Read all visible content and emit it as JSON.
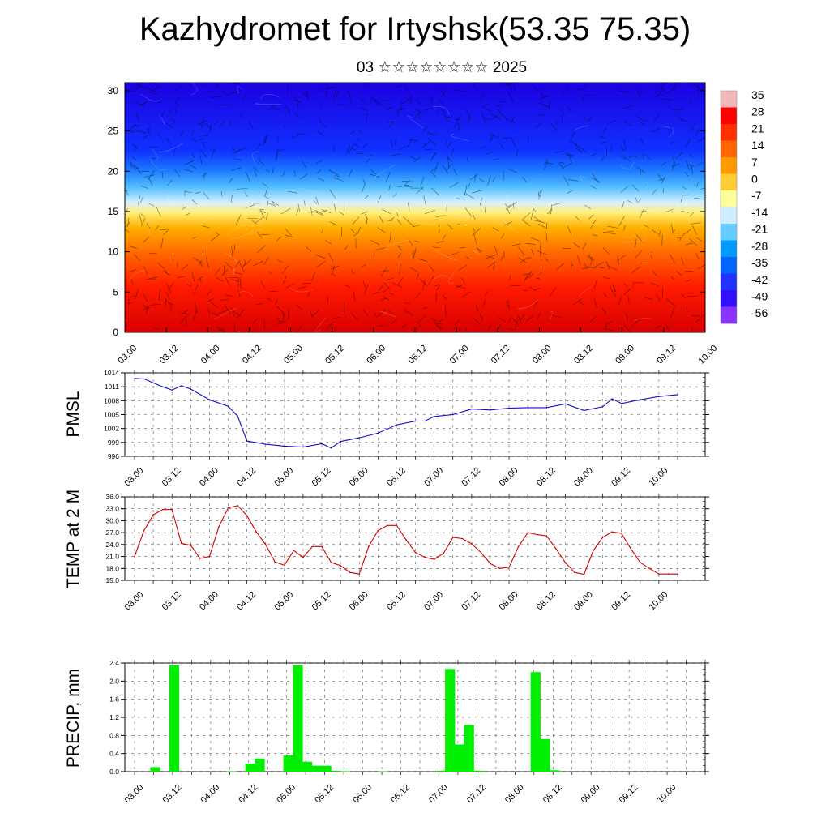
{
  "title": "Kazhydromet for Irtyshsk(53.35 75.35)",
  "subtitle": "03 ☆☆☆☆☆☆☆☆ 2025",
  "chart_data": [
    {
      "type": "heatmap",
      "yticks": [
        "0",
        "5",
        "10",
        "15",
        "20",
        "25",
        "30"
      ],
      "ylim": [
        0,
        31
      ],
      "xticks": [
        "03.00",
        "03.12",
        "04.00",
        "04.12",
        "05.00",
        "05.12",
        "06.00",
        "06.12",
        "07.00",
        "07.12",
        "08.00",
        "08.12",
        "09.00",
        "09.12",
        "10.00"
      ],
      "colorbar_labels": [
        "35",
        "28",
        "21",
        "14",
        "7",
        "0",
        "-7",
        "-14",
        "-21",
        "-28",
        "-35",
        "-42",
        "-49",
        "-56"
      ],
      "colorbar_colors": [
        "#f2b8b8",
        "#ff0000",
        "#ff3000",
        "#ff6600",
        "#ff9900",
        "#ffcc33",
        "#ffff99",
        "#cceeff",
        "#66ccff",
        "#0099ff",
        "#0066ff",
        "#2233ff",
        "#3311ff",
        "#8833ff"
      ]
    },
    {
      "type": "line",
      "ylabel": "PMSL",
      "yticks": [
        "1014",
        "1011",
        "1008",
        "1005",
        "1002",
        "999",
        "996"
      ],
      "ylim": [
        996,
        1014
      ],
      "xticks": [
        "03.00",
        "03.12",
        "04.00",
        "04.12",
        "05.00",
        "05.12",
        "06.00",
        "06.12",
        "07.00",
        "07.12",
        "08.00",
        "08.12",
        "09.00",
        "09.12",
        "10.00"
      ],
      "x_hours": [
        0,
        6,
        12,
        18,
        21,
        24,
        30,
        36,
        42,
        48,
        51,
        54,
        60,
        66,
        72,
        78,
        84,
        90,
        96,
        99,
        102,
        108,
        114,
        120,
        126,
        132,
        138,
        144,
        150,
        156,
        162,
        168
      ],
      "values": [
        1012.8,
        1012.7,
        1011.0,
        1010.3,
        1011.2,
        1010.5,
        1008.2,
        1006.8,
        1004.7,
        999.3,
        998.6,
        998.2,
        998.0,
        998.7,
        997.8,
        999.2,
        1000.0,
        1001.0,
        1002.8,
        1003.6,
        1003.6,
        1004.6,
        1005.0,
        1006.2,
        1006.0,
        1006.4,
        1006.5,
        1006.5,
        1007.3,
        1005.9,
        1006.7,
        1008.4,
        1007.4,
        1008.2,
        1008.9,
        1009.3
      ],
      "x_all": [
        0,
        3,
        9,
        12,
        15,
        18,
        24,
        30,
        33,
        36,
        42,
        48,
        54,
        60,
        63,
        66,
        72,
        78,
        84,
        90,
        93,
        96,
        102,
        108,
        114,
        120,
        126,
        132,
        138,
        144,
        150,
        153,
        156,
        162,
        168,
        174
      ]
    },
    {
      "type": "line",
      "ylabel": "TEMP at 2 M",
      "yticks": [
        "36.0",
        "33.0",
        "30.0",
        "27.0",
        "24.0",
        "21.0",
        "18.0",
        "15.0"
      ],
      "ylim": [
        15,
        36
      ],
      "xticks": [
        "03.00",
        "03.12",
        "04.00",
        "04.12",
        "05.00",
        "05.12",
        "06.00",
        "06.12",
        "07.00",
        "07.12",
        "08.00",
        "08.12",
        "09.00",
        "09.12",
        "10.00"
      ],
      "x": [
        0,
        3,
        6,
        9,
        12,
        15,
        18,
        21,
        24,
        27,
        30,
        33,
        36,
        39,
        42,
        45,
        48,
        51,
        54,
        57,
        60,
        63,
        66,
        69,
        72,
        75,
        78,
        81,
        84,
        87,
        90,
        93,
        96,
        99,
        102,
        105,
        108,
        111,
        114,
        117,
        120,
        123,
        126,
        129,
        132,
        135,
        138,
        141,
        144,
        147,
        150,
        153,
        156,
        159,
        162,
        165,
        168,
        171,
        174
      ],
      "values": [
        21.0,
        27.5,
        31.5,
        32.8,
        32.8,
        24.3,
        23.8,
        20.5,
        21.0,
        28.5,
        33.2,
        33.8,
        31.3,
        27.2,
        24.0,
        19.6,
        18.8,
        22.5,
        20.8,
        23.5,
        23.5,
        19.5,
        18.7,
        17.0,
        16.6,
        23.5,
        27.5,
        28.8,
        28.8,
        25.2,
        22.0,
        20.8,
        20.3,
        21.8,
        25.8,
        25.5,
        24.2,
        22.0,
        19.2,
        18.0,
        18.3,
        23.5,
        27.0,
        26.5,
        26.2,
        23.0,
        19.5,
        17.0,
        16.5,
        22.5,
        25.8,
        27.2,
        26.8,
        23.0,
        19.5,
        18.0,
        16.6,
        16.6,
        16.6
      ]
    },
    {
      "type": "bar",
      "ylabel": "PRECIP, mm",
      "yticks": [
        "2.4",
        "2.0",
        "1.6",
        "1.2",
        "0.8",
        "0.4",
        "0.0"
      ],
      "ylim": [
        0,
        2.4
      ],
      "xticks": [
        "03.00",
        "03.12",
        "04.00",
        "04.12",
        "05.00",
        "05.12",
        "06.00",
        "06.12",
        "07.00",
        "07.12",
        "08.00",
        "08.12",
        "09.00",
        "09.12",
        "10.00"
      ],
      "bar_hours": [
        6,
        12,
        30,
        36,
        39,
        48,
        51,
        54,
        57,
        60,
        63,
        66,
        78,
        96,
        99,
        102,
        105,
        108,
        126,
        129,
        132,
        135
      ],
      "values": [
        0.1,
        2.35,
        0.01,
        0.18,
        0.29,
        0.36,
        2.35,
        0.22,
        0.13,
        0.13,
        0.02,
        0.01,
        0.01,
        0.02,
        2.27,
        0.6,
        1.03,
        0.02,
        2.2,
        0.72,
        0.03,
        0.0
      ]
    }
  ]
}
